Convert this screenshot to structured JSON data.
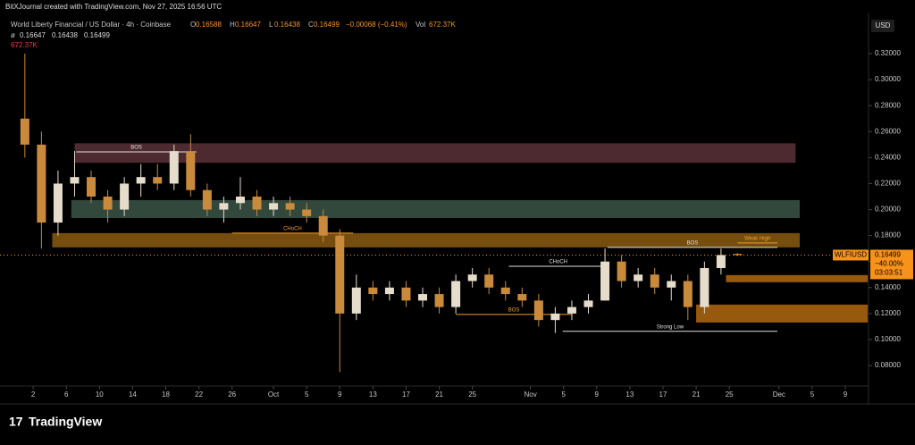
{
  "header": {
    "credit": "BitXJournal created with TradingView.com, Nov 27, 2025 16:56 UTC"
  },
  "chart_data": {
    "type": "candlestick",
    "title": "World Liberty Financial / US Dollar · 4h · Coinbase",
    "ohlc": [
      {
        "label": "O",
        "value": "0.16588"
      },
      {
        "label": "H",
        "value": "0.16647"
      },
      {
        "label": "L",
        "value": "0.16438"
      },
      {
        "label": "C",
        "value": "0.16499"
      }
    ],
    "change": "−0.00068 (−0.41%)",
    "volume": {
      "label": "Vol",
      "value": "672.37K"
    },
    "indicator": {
      "label": "ø",
      "values": [
        "0.16647",
        "0.16438",
        "0.16499"
      ],
      "volume": "672.37K"
    },
    "currency": "USD",
    "x": [
      0,
      2,
      4,
      6,
      8,
      10,
      12,
      14,
      16,
      18,
      20,
      22,
      24,
      26,
      28,
      30,
      32,
      34,
      36,
      38,
      40,
      42,
      44,
      46,
      48,
      50,
      52,
      54,
      56,
      58,
      60,
      62,
      64,
      66,
      68,
      70,
      72,
      74,
      76,
      78,
      80,
      82,
      84,
      86
    ],
    "open": [
      0.27,
      0.25,
      0.19,
      0.22,
      0.225,
      0.21,
      0.2,
      0.22,
      0.225,
      0.22,
      0.245,
      0.215,
      0.2,
      0.205,
      0.21,
      0.2,
      0.205,
      0.2,
      0.195,
      0.18,
      0.12,
      0.14,
      0.135,
      0.14,
      0.13,
      0.135,
      0.125,
      0.145,
      0.15,
      0.14,
      0.135,
      0.13,
      0.115,
      0.12,
      0.125,
      0.13,
      0.16,
      0.145,
      0.15,
      0.14,
      0.145,
      0.125,
      0.155,
      0.16588
    ],
    "high": [
      0.32,
      0.26,
      0.23,
      0.245,
      0.23,
      0.215,
      0.225,
      0.235,
      0.235,
      0.25,
      0.258,
      0.22,
      0.21,
      0.225,
      0.215,
      0.21,
      0.21,
      0.205,
      0.2,
      0.185,
      0.15,
      0.145,
      0.145,
      0.145,
      0.14,
      0.14,
      0.15,
      0.155,
      0.155,
      0.145,
      0.14,
      0.135,
      0.125,
      0.13,
      0.135,
      0.17,
      0.165,
      0.155,
      0.155,
      0.15,
      0.15,
      0.16,
      0.17,
      0.16647
    ],
    "low": [
      0.24,
      0.17,
      0.18,
      0.21,
      0.205,
      0.19,
      0.195,
      0.21,
      0.215,
      0.215,
      0.21,
      0.195,
      0.19,
      0.2,
      0.195,
      0.195,
      0.195,
      0.19,
      0.175,
      0.075,
      0.115,
      0.13,
      0.13,
      0.125,
      0.125,
      0.12,
      0.12,
      0.14,
      0.135,
      0.13,
      0.125,
      0.11,
      0.105,
      0.115,
      0.12,
      0.13,
      0.14,
      0.14,
      0.135,
      0.13,
      0.115,
      0.12,
      0.15,
      0.16438
    ],
    "close": [
      0.25,
      0.19,
      0.22,
      0.225,
      0.21,
      0.2,
      0.22,
      0.225,
      0.22,
      0.245,
      0.215,
      0.2,
      0.205,
      0.21,
      0.2,
      0.205,
      0.2,
      0.195,
      0.18,
      0.12,
      0.14,
      0.135,
      0.14,
      0.13,
      0.135,
      0.125,
      0.145,
      0.15,
      0.14,
      0.135,
      0.13,
      0.115,
      0.12,
      0.125,
      0.13,
      0.16,
      0.145,
      0.15,
      0.14,
      0.145,
      0.125,
      0.155,
      0.165,
      0.16499
    ],
    "up_color": "#e6dccb",
    "down_color": "#c98a3c",
    "xlim": [
      -3,
      101.8
    ],
    "xticks": [
      {
        "value": 1,
        "label": "2"
      },
      {
        "value": 5,
        "label": "6"
      },
      {
        "value": 9,
        "label": "10"
      },
      {
        "value": 13,
        "label": "14"
      },
      {
        "value": 17,
        "label": "18"
      },
      {
        "value": 21,
        "label": "22"
      },
      {
        "value": 25,
        "label": "26"
      },
      {
        "value": 30,
        "label": "Oct"
      },
      {
        "value": 34,
        "label": "5"
      },
      {
        "value": 38,
        "label": "9"
      },
      {
        "value": 42,
        "label": "13"
      },
      {
        "value": 46,
        "label": "17"
      },
      {
        "value": 50,
        "label": "21"
      },
      {
        "value": 54,
        "label": "25"
      },
      {
        "value": 61,
        "label": "Nov"
      },
      {
        "value": 65,
        "label": "5"
      },
      {
        "value": 69,
        "label": "9"
      },
      {
        "value": 73,
        "label": "13"
      },
      {
        "value": 77,
        "label": "17"
      },
      {
        "value": 81,
        "label": "21"
      },
      {
        "value": 85,
        "label": "25"
      },
      {
        "value": 91,
        "label": "Dec"
      },
      {
        "value": 95,
        "label": "5"
      },
      {
        "value": 99,
        "label": "9"
      }
    ],
    "ylim": [
      0.0656,
      0.3489
    ],
    "yticks": [
      {
        "value": 0.08,
        "label": "0.08000"
      },
      {
        "value": 0.1,
        "label": "0.10000"
      },
      {
        "value": 0.12,
        "label": "0.12000"
      },
      {
        "value": 0.14,
        "label": "0.14000"
      },
      {
        "value": 0.16,
        "label": "0.16000"
      },
      {
        "value": 0.18,
        "label": "0.18000"
      },
      {
        "value": 0.2,
        "label": "0.20000"
      },
      {
        "value": 0.22,
        "label": "0.22000"
      },
      {
        "value": 0.24,
        "label": "0.24000"
      },
      {
        "value": 0.26,
        "label": "0.26000"
      },
      {
        "value": 0.28,
        "label": "0.28000"
      },
      {
        "value": 0.3,
        "label": "0.30000"
      },
      {
        "value": 0.32,
        "label": "0.32000"
      }
    ],
    "zones": [
      {
        "x": [
          6,
          93
        ],
        "y": [
          0.236,
          0.251
        ],
        "color": "#5a3138"
      },
      {
        "x": [
          5.6,
          93.5
        ],
        "y": [
          0.1935,
          0.2073
        ],
        "color": "#3b5548"
      },
      {
        "x": [
          3.3,
          93.5
        ],
        "y": [
          0.1709,
          0.1819
        ],
        "color": "#8a5a12"
      },
      {
        "x": [
          84.6,
          101.7
        ],
        "y": [
          0.1441,
          0.1496
        ],
        "color": "#b06810"
      },
      {
        "x": [
          81,
          101.7
        ],
        "y": [
          0.1131,
          0.1269
        ],
        "color": "#b06810"
      }
    ],
    "levels": [
      {
        "label": "BOS",
        "x": [
          6.2,
          20.7
        ],
        "y": 0.2444,
        "color": "#e0e0e0"
      },
      {
        "label": "CHoCH",
        "x": [
          25,
          39.6
        ],
        "y": 0.1819,
        "color": "#f0a030"
      },
      {
        "label": "CHoCH",
        "x": [
          58.4,
          70.3
        ],
        "y": 0.1564,
        "color": "#e0e0e0"
      },
      {
        "label": "BOS",
        "x": [
          52,
          66
        ],
        "y": 0.1193,
        "color": "#f0a030"
      },
      {
        "label": "BOS",
        "x": [
          70.3,
          90.8
        ],
        "y": 0.1709,
        "color": "#e0e0e0"
      },
      {
        "label": "Strong Low",
        "x": [
          64.9,
          90.8
        ],
        "y": 0.1063,
        "color": "#e0e0e0"
      },
      {
        "label": "Weak High",
        "x": [
          86,
          90.8
        ],
        "y": 0.1743,
        "color": "#f0a030"
      }
    ],
    "last": {
      "symbol": "WLFIUSD",
      "price": 0.16499,
      "change": "−40.00%",
      "countdown": "03:03:51",
      "color": "#f7931a"
    }
  },
  "footer": {
    "brand": "TradingView"
  }
}
